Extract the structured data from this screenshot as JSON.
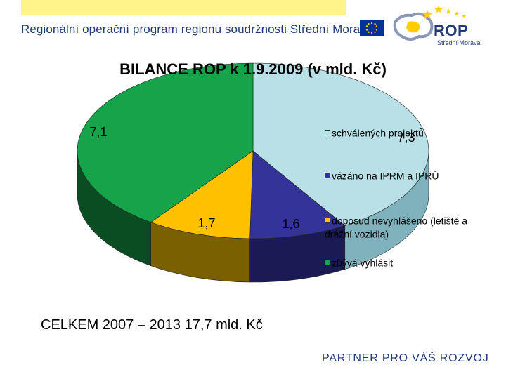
{
  "header": {
    "title": "Regionální operační program regionu soudržnosti Střední Morava",
    "logo_text": "ROP",
    "logo_sub": "Střední Morava"
  },
  "colors": {
    "header_bar": "#fff48a",
    "brand_blue": "#1f3a7a",
    "eu_blue": "#003399",
    "star_yellow": "#ffcc00"
  },
  "chart_data": {
    "type": "pie",
    "title": "BILANCE ROP k 1.9.2009 (v mld. Kč)",
    "series": [
      {
        "name": "schválených projektů",
        "value": 7.3,
        "label": "7,3",
        "color": "#b8e0e6",
        "side": "#7fb2bc"
      },
      {
        "name": "vázáno na IPRM a IPRÚ",
        "value": 1.6,
        "label": "1,6",
        "color": "#333399",
        "side": "#1a1a55"
      },
      {
        "name": "doposud nevyhlášeno (letiště a drážní vozidla)",
        "value": 1.7,
        "label": "1,7",
        "color": "#ffc000",
        "side": "#7a6000"
      },
      {
        "name": "zbývá vyhlásit",
        "value": 7.1,
        "label": "7,1",
        "color": "#16a34a",
        "side": "#0b4d22"
      }
    ],
    "legend_position": "right",
    "total_text": "CELKEM 2007 – 2013 17,7 mld. Kč"
  },
  "footer": {
    "text": "PARTNER PRO VÁŠ ROZVOJ"
  }
}
